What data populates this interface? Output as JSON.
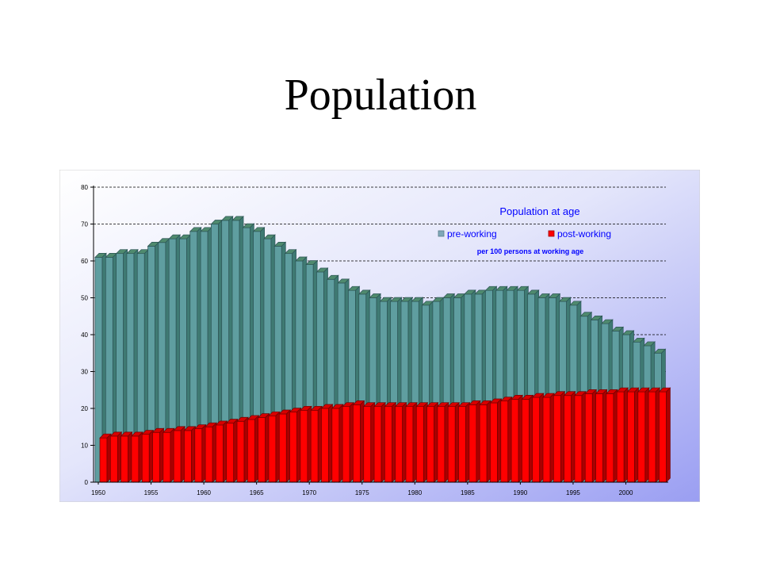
{
  "slide": {
    "title": "Population"
  },
  "chart_data": {
    "type": "bar",
    "title": "Population at age",
    "subtitle": "per 100 persons at working age",
    "xlabel": "",
    "ylabel": "",
    "ylim": [
      0,
      80
    ],
    "yticks": [
      0,
      10,
      20,
      30,
      40,
      50,
      60,
      70,
      80
    ],
    "xtick_labels": [
      "1950",
      "1955",
      "1960",
      "1965",
      "1970",
      "1975",
      "1980",
      "1985",
      "1990",
      "1995",
      "2000"
    ],
    "categories": [
      1950,
      1951,
      1952,
      1953,
      1954,
      1955,
      1956,
      1957,
      1958,
      1959,
      1960,
      1961,
      1962,
      1963,
      1964,
      1965,
      1966,
      1967,
      1968,
      1969,
      1970,
      1971,
      1972,
      1973,
      1974,
      1975,
      1976,
      1977,
      1978,
      1979,
      1980,
      1981,
      1982,
      1983,
      1984,
      1985,
      1986,
      1987,
      1988,
      1989,
      1990,
      1991,
      1992,
      1993,
      1994,
      1995,
      1996,
      1997,
      1998,
      1999,
      2000,
      2001,
      2002,
      2003
    ],
    "series": [
      {
        "name": "pre-working",
        "color": "#5f9ea0",
        "values": [
          61,
          61,
          62,
          62,
          62,
          64,
          65,
          66,
          66,
          68,
          68,
          70,
          71,
          71,
          69,
          68,
          66,
          64,
          62,
          60,
          59,
          57,
          55,
          54,
          52,
          51,
          50,
          49,
          49,
          49,
          49,
          48,
          49,
          50,
          50,
          51,
          51,
          52,
          52,
          52,
          52,
          51,
          50,
          50,
          49,
          48,
          45,
          44,
          43,
          41,
          40,
          38,
          37,
          35
        ]
      },
      {
        "name": "post-working",
        "color": "#ff0000",
        "values": [
          12,
          12.5,
          12.5,
          12.5,
          13,
          13.5,
          13.5,
          14,
          14,
          14.5,
          15,
          15.5,
          16,
          16.5,
          17,
          17.5,
          18,
          18.5,
          19,
          19.5,
          19.5,
          20,
          20,
          20.5,
          21,
          20.5,
          20.5,
          20.5,
          20.5,
          20.5,
          20.5,
          20.5,
          20.5,
          20.5,
          20.5,
          21,
          21,
          21.5,
          22,
          22.5,
          22.5,
          23,
          23,
          23.5,
          23.5,
          23.5,
          24,
          24,
          24,
          24.5,
          24.5,
          24.5,
          24.5,
          24.5
        ]
      }
    ],
    "grid": "horizontal dashed",
    "legend_position": "top-right",
    "colors": {
      "plot_background": "#c8ccf6",
      "gridline": "#000000"
    }
  }
}
